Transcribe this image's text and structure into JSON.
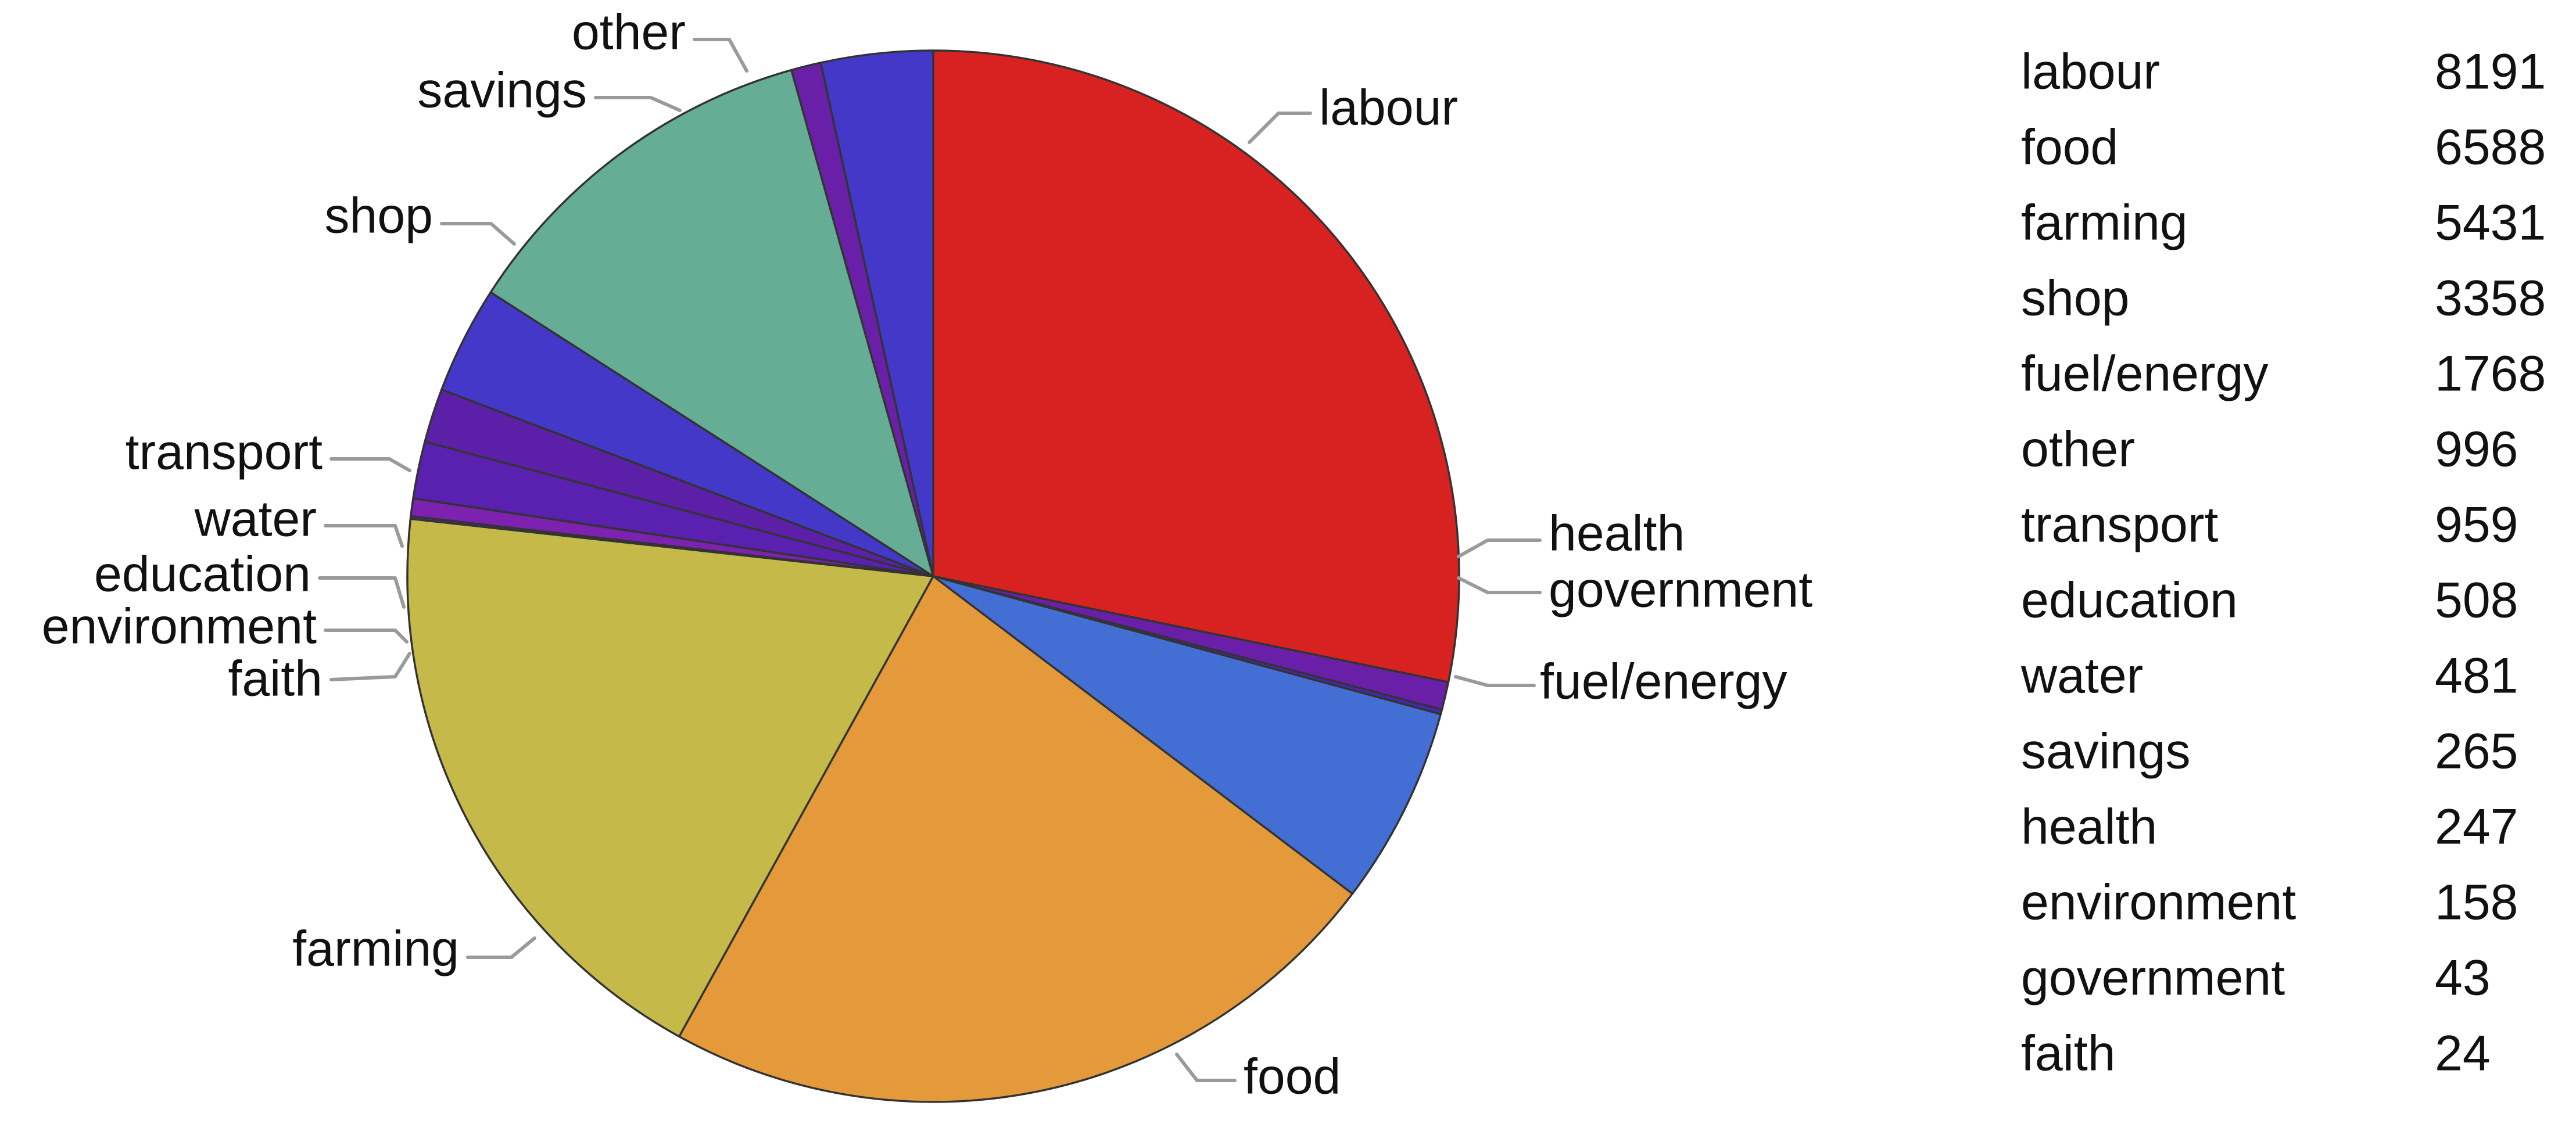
{
  "chart_data": {
    "type": "pie",
    "start_angle_deg": 90,
    "direction": "clockwise",
    "slices": [
      {
        "label": "labour",
        "value": 8191,
        "color": "#d82222"
      },
      {
        "label": "health",
        "value": 247,
        "color": "#6a1fa8"
      },
      {
        "label": "government",
        "value": 43,
        "color": "#4a24b0"
      },
      {
        "label": "fuel/energy",
        "value": 1768,
        "color": "#436ed4"
      },
      {
        "label": "food",
        "value": 6588,
        "color": "#e49a3a"
      },
      {
        "label": "farming",
        "value": 5431,
        "color": "#c5b94a"
      },
      {
        "label": "faith",
        "value": 24,
        "color": "#5b1fa0"
      },
      {
        "label": "environment",
        "value": 158,
        "color": "#7d22b0"
      },
      {
        "label": "education",
        "value": 508,
        "color": "#5a20b0"
      },
      {
        "label": "water",
        "value": 481,
        "color": "#5c20a8"
      },
      {
        "label": "transport",
        "value": 959,
        "color": "#4338c8"
      },
      {
        "label": "shop",
        "value": 3358,
        "color": "#66ad96"
      },
      {
        "label": "savings",
        "value": 265,
        "color": "#6a1fa8"
      },
      {
        "label": "other",
        "value": 996,
        "color": "#4338c8"
      }
    ],
    "table": [
      {
        "label": "labour",
        "value": "8191"
      },
      {
        "label": "food",
        "value": "6588"
      },
      {
        "label": "farming",
        "value": "5431"
      },
      {
        "label": "shop",
        "value": "3358"
      },
      {
        "label": "fuel/energy",
        "value": "1768"
      },
      {
        "label": "other",
        "value": "996"
      },
      {
        "label": "transport",
        "value": "959"
      },
      {
        "label": "education",
        "value": "508"
      },
      {
        "label": "water",
        "value": "481"
      },
      {
        "label": "savings",
        "value": "265"
      },
      {
        "label": "health",
        "value": "247"
      },
      {
        "label": "environment",
        "value": "158"
      },
      {
        "label": "government",
        "value": "43"
      },
      {
        "label": "faith",
        "value": "24"
      }
    ]
  }
}
